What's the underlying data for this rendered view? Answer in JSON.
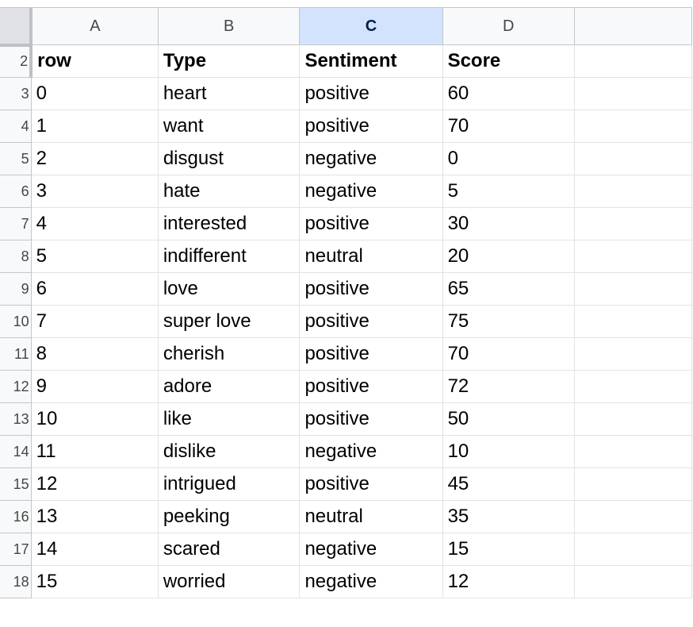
{
  "columns": [
    "A",
    "B",
    "C",
    "D"
  ],
  "selected_column": "C",
  "row_numbers": [
    "2",
    "3",
    "4",
    "5",
    "6",
    "7",
    "8",
    "9",
    "10",
    "11",
    "12",
    "13",
    "14",
    "15",
    "16",
    "17",
    "18"
  ],
  "header_row": [
    "row",
    "Type",
    "Sentiment",
    "Score"
  ],
  "rows": [
    [
      "0",
      "heart",
      "positive",
      "60"
    ],
    [
      "1",
      "want",
      "positive",
      "70"
    ],
    [
      "2",
      "disgust",
      "negative",
      "0"
    ],
    [
      "3",
      "hate",
      "negative",
      "5"
    ],
    [
      "4",
      "interested",
      "positive",
      "30"
    ],
    [
      "5",
      "indifferent",
      "neutral",
      "20"
    ],
    [
      "6",
      "love",
      "positive",
      "65"
    ],
    [
      "7",
      "super love",
      "positive",
      "75"
    ],
    [
      "8",
      "cherish",
      "positive",
      "70"
    ],
    [
      "9",
      "adore",
      "positive",
      "72"
    ],
    [
      "10",
      "like",
      "positive",
      "50"
    ],
    [
      "11",
      "dislike",
      "negative",
      "10"
    ],
    [
      "12",
      "intrigued",
      "positive",
      "45"
    ],
    [
      "13",
      "peeking",
      "neutral",
      "35"
    ],
    [
      "14",
      "scared",
      "negative",
      "15"
    ],
    [
      "15",
      "worried",
      "negative",
      "12"
    ]
  ],
  "colors": {
    "selected_header_bg": "#d3e3fd",
    "header_bg": "#f8f9fa",
    "gridline": "#e2e3e3"
  }
}
